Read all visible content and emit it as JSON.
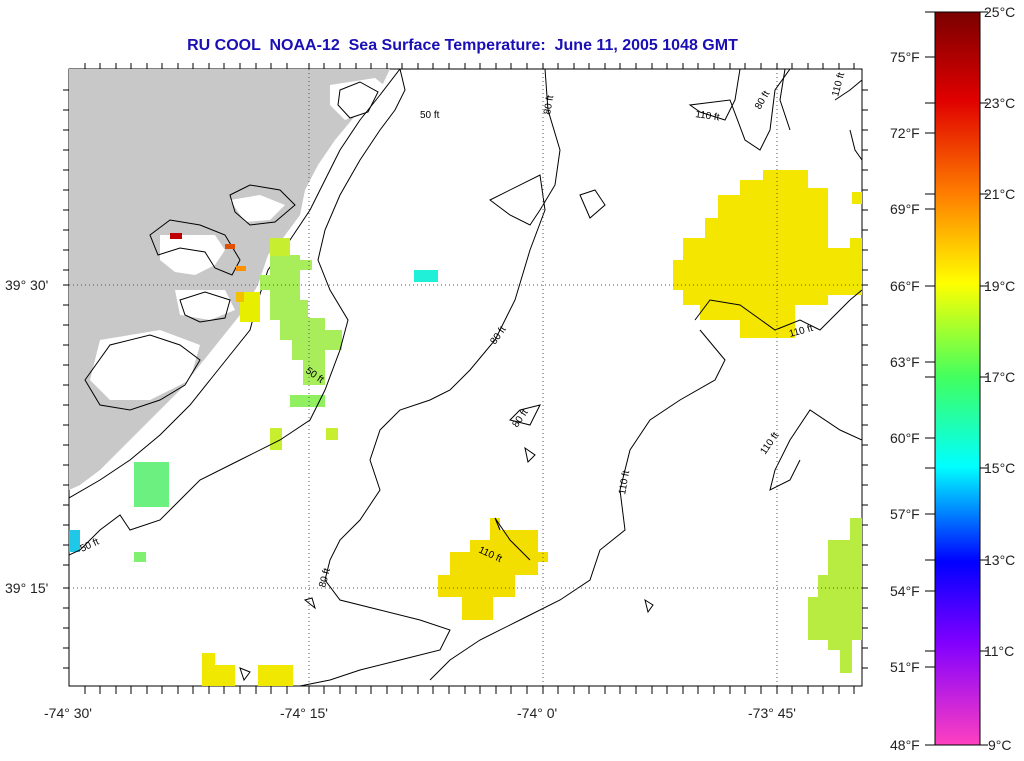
{
  "title": "RU COOL  NOAA-12  Sea Surface Temperature:  June 11, 2005 1048 GMT",
  "map": {
    "lat_labels": [
      "39° 30'",
      "39° 15'"
    ],
    "lon_labels": [
      "-74° 30'",
      "-74° 15'",
      "-74° 0'",
      "-73° 45'"
    ],
    "contour_labels": [
      "50 ft",
      "50 ft",
      "50 ft",
      "80 ft",
      "80 ft",
      "80 ft",
      "80 ft",
      "80 ft",
      "110 ft",
      "110 ft",
      "110 ft",
      "110 ft",
      "110 ft",
      "110 ft"
    ]
  },
  "colorbar": {
    "celsius": [
      "25°C",
      "23°C",
      "21°C",
      "19°C",
      "17°C",
      "15°C",
      "13°C",
      "11°C",
      "9°C"
    ],
    "fahrenheit": [
      "75°F",
      "72°F",
      "69°F",
      "66°F",
      "63°F",
      "60°F",
      "57°F",
      "54°F",
      "51°F",
      "48°F"
    ]
  }
}
